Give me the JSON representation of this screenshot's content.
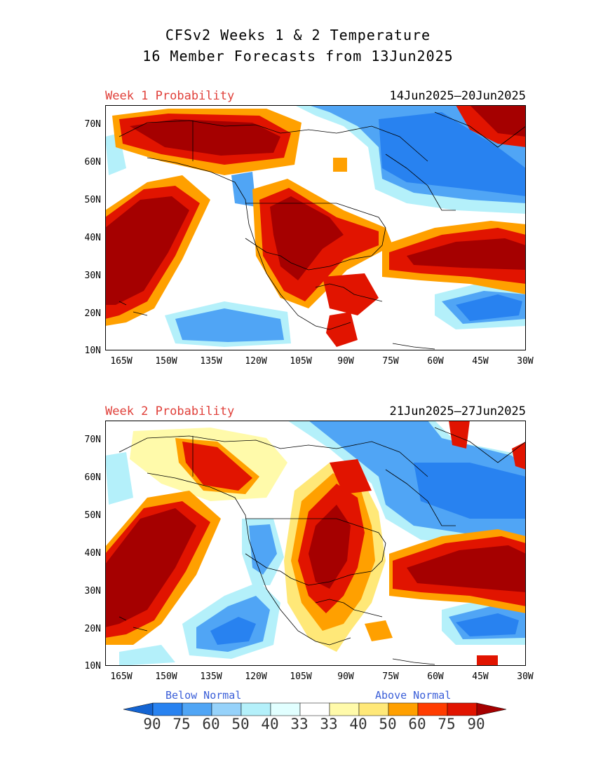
{
  "header": {
    "title_line1": "CFSv2 Weeks 1 & 2 Temperature",
    "title_line2": "16 Member Forecasts from 13Jun2025"
  },
  "panels": [
    {
      "label": "Week 1 Probability",
      "dates": "14Jun2025—20Jun2025"
    },
    {
      "label": "Week 2 Probability",
      "dates": "21Jun2025—27Jun2025"
    }
  ],
  "axes": {
    "lat_labels": [
      "70N",
      "60N",
      "50N",
      "40N",
      "30N",
      "20N",
      "10N"
    ],
    "lon_labels": [
      "165W",
      "150W",
      "135W",
      "120W",
      "105W",
      "90W",
      "75W",
      "60W",
      "45W",
      "30W"
    ]
  },
  "legend": {
    "below_label": "Below Normal",
    "above_label": "Above Normal",
    "values": [
      "90",
      "75",
      "60",
      "50",
      "40",
      "33",
      "33",
      "40",
      "50",
      "60",
      "75",
      "90"
    ],
    "colors_below": [
      "#1464d2",
      "#2882f0",
      "#50a5f5",
      "#96d2fa",
      "#b4f0fa",
      "#e1ffff"
    ],
    "colors_above": [
      "#ffffff",
      "#fffaaa",
      "#ffe878",
      "#ffa000",
      "#ff3c00",
      "#e11400",
      "#a50000"
    ]
  }
}
